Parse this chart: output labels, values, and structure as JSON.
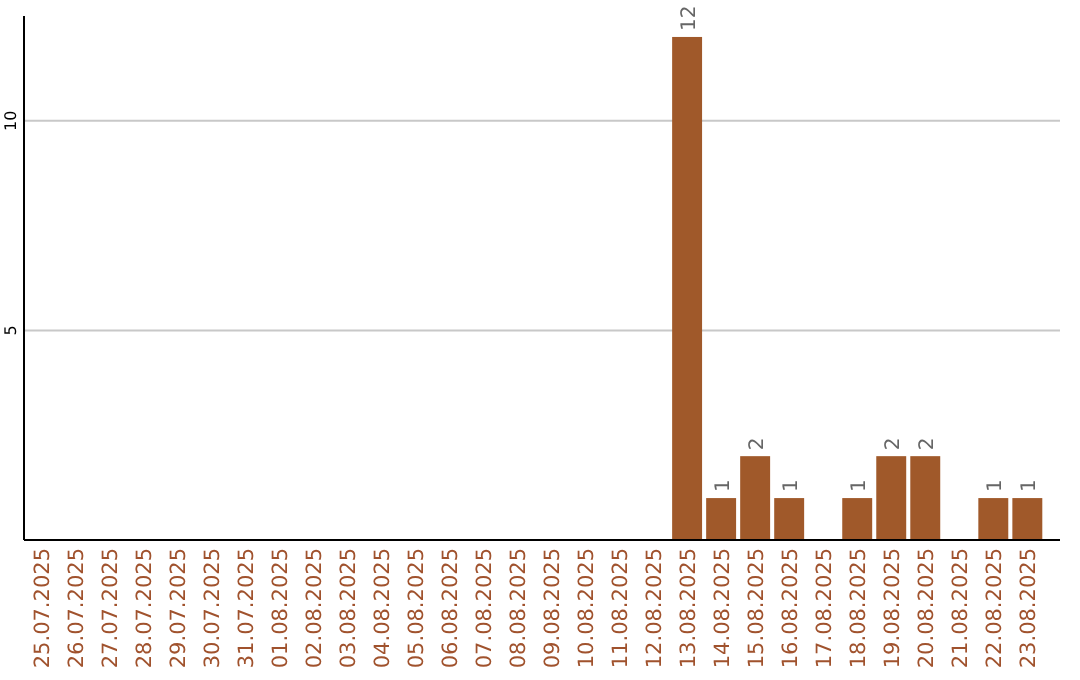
{
  "chart_data": {
    "type": "bar",
    "categories": [
      "25.07.2025",
      "26.07.2025",
      "27.07.2025",
      "28.07.2025",
      "29.07.2025",
      "30.07.2025",
      "31.07.2025",
      "01.08.2025",
      "02.08.2025",
      "03.08.2025",
      "04.08.2025",
      "05.08.2025",
      "06.08.2025",
      "07.08.2025",
      "08.08.2025",
      "09.08.2025",
      "10.08.2025",
      "11.08.2025",
      "12.08.2025",
      "13.08.2025",
      "14.08.2025",
      "15.08.2025",
      "16.08.2025",
      "17.08.2025",
      "18.08.2025",
      "19.08.2025",
      "20.08.2025",
      "21.08.2025",
      "22.08.2025",
      "23.08.2025"
    ],
    "values": [
      0,
      0,
      0,
      0,
      0,
      0,
      0,
      0,
      0,
      0,
      0,
      0,
      0,
      0,
      0,
      0,
      0,
      0,
      0,
      12,
      1,
      2,
      1,
      0,
      1,
      2,
      2,
      0,
      1,
      1
    ],
    "value_labels": [
      null,
      null,
      null,
      null,
      null,
      null,
      null,
      null,
      null,
      null,
      null,
      null,
      null,
      null,
      null,
      null,
      null,
      null,
      null,
      "12",
      "1",
      "2",
      "1",
      null,
      "1",
      "2",
      "2",
      null,
      "1",
      "1"
    ],
    "color": "#a0592a",
    "ylim": [
      0,
      12.5
    ],
    "yticks": [
      5,
      10
    ],
    "grid": "y"
  }
}
